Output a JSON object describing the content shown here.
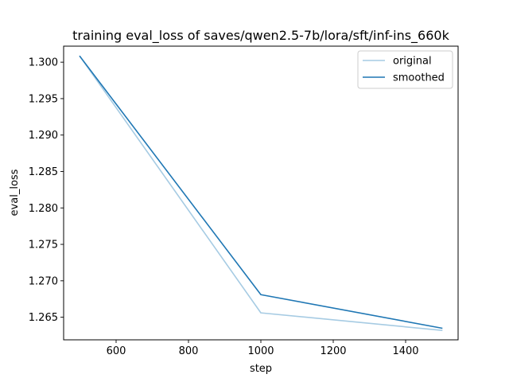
{
  "chart_data": {
    "type": "line",
    "title": "training eval_loss of saves/qwen2.5-7b/lora/sft/inf-ins_660k",
    "xlabel": "step",
    "ylabel": "eval_loss",
    "xlim": [
      455,
      1545
    ],
    "ylim": [
      1.2619,
      1.3022
    ],
    "xticks": [
      600,
      800,
      1000,
      1200,
      1400
    ],
    "yticks": [
      1.265,
      1.27,
      1.275,
      1.28,
      1.285,
      1.29,
      1.295,
      1.3
    ],
    "ytick_labels": [
      "1.265",
      "1.270",
      "1.275",
      "1.280",
      "1.285",
      "1.290",
      "1.295",
      "1.300"
    ],
    "grid": false,
    "legend_position": "top-right",
    "series": [
      {
        "name": "original",
        "color": "#a6cbe3",
        "x": [
          500,
          1000,
          1500
        ],
        "y": [
          1.3008,
          1.2656,
          1.2632
        ]
      },
      {
        "name": "smoothed",
        "color": "#1f77b4",
        "x": [
          500,
          1000,
          1500
        ],
        "y": [
          1.3008,
          1.2681,
          1.2635
        ]
      }
    ]
  }
}
